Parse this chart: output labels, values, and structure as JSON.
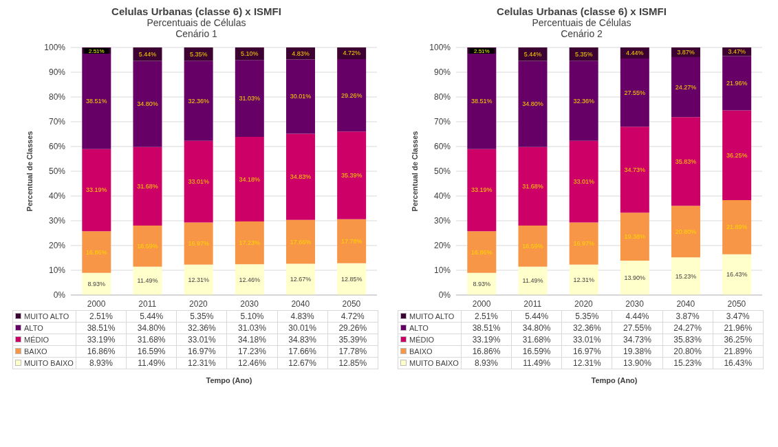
{
  "chart_data": [
    {
      "type": "bar",
      "title": "Celulas Urbanas (classe 6) x ISMFI",
      "subtitle": "Percentuais de Células\nCenário 1",
      "xlabel": "Tempo (Ano)",
      "ylabel": "Percentual de Classes",
      "categories": [
        "2000",
        "2011",
        "2020",
        "2030",
        "2040",
        "2050"
      ],
      "stacked": true,
      "grid": "y",
      "legend": "bottom",
      "ylim": [
        0,
        100
      ],
      "yticks": [
        {
          "value": 0,
          "label": "0%"
        },
        {
          "value": 10,
          "label": "10%"
        },
        {
          "value": 20,
          "label": "20%"
        },
        {
          "value": 30,
          "label": "30%"
        },
        {
          "value": 40,
          "label": "40%"
        },
        {
          "value": 50,
          "label": "50%"
        },
        {
          "value": 60,
          "label": "60%"
        },
        {
          "value": 70,
          "label": "70%"
        },
        {
          "value": 80,
          "label": "80%"
        },
        {
          "value": 90,
          "label": "90%"
        },
        {
          "value": 100,
          "label": "100%"
        }
      ],
      "series": [
        {
          "name": "MUITO BAIXO",
          "color": "#ffffcc",
          "values": [
            8.93,
            11.49,
            12.31,
            12.46,
            12.67,
            12.85
          ],
          "value_labels": [
            "8.93%",
            "11.49%",
            "12.31%",
            "12.46%",
            "12.67%",
            "12.85%"
          ]
        },
        {
          "name": "BAIXO",
          "color": "#f79646",
          "values": [
            16.86,
            16.59,
            16.97,
            17.23,
            17.66,
            17.78
          ],
          "value_labels": [
            "16.86%",
            "16.59%",
            "16.97%",
            "17.23%",
            "17.66%",
            "17.78%"
          ]
        },
        {
          "name": "MÉDIO",
          "color": "#cc0066",
          "values": [
            33.19,
            31.68,
            33.01,
            34.18,
            34.83,
            35.39
          ],
          "value_labels": [
            "33.19%",
            "31.68%",
            "33.01%",
            "34.18%",
            "34.83%",
            "35.39%"
          ]
        },
        {
          "name": "ALTO",
          "color": "#660066",
          "values": [
            38.51,
            34.8,
            32.36,
            31.03,
            30.01,
            29.26
          ],
          "value_labels": [
            "38.51%",
            "34.80%",
            "32.36%",
            "31.03%",
            "30.01%",
            "29.26%"
          ]
        },
        {
          "name": "MUITO ALTO",
          "color": "#3d0033",
          "values": [
            2.51,
            5.44,
            5.35,
            5.1,
            4.83,
            4.72
          ],
          "value_labels": [
            "2.51%",
            "5.44%",
            "5.35%",
            "5.10%",
            "4.83%",
            "4.72%"
          ]
        }
      ]
    },
    {
      "type": "bar",
      "title": "Celulas Urbanas (classe 6) x ISMFI",
      "subtitle": "Percentuais de Células\nCenário 2",
      "xlabel": "Tempo (Ano)",
      "ylabel": "Percentual de Classes",
      "categories": [
        "2000",
        "2011",
        "2020",
        "2030",
        "2040",
        "2050"
      ],
      "stacked": true,
      "grid": "y",
      "legend": "bottom",
      "ylim": [
        0,
        100
      ],
      "yticks": [
        {
          "value": 0,
          "label": "0%"
        },
        {
          "value": 10,
          "label": "10%"
        },
        {
          "value": 20,
          "label": "20%"
        },
        {
          "value": 30,
          "label": "30%"
        },
        {
          "value": 40,
          "label": "40%"
        },
        {
          "value": 50,
          "label": "50%"
        },
        {
          "value": 60,
          "label": "60%"
        },
        {
          "value": 70,
          "label": "70%"
        },
        {
          "value": 80,
          "label": "80%"
        },
        {
          "value": 90,
          "label": "90%"
        },
        {
          "value": 100,
          "label": "100%"
        }
      ],
      "series": [
        {
          "name": "MUITO BAIXO",
          "color": "#ffffcc",
          "values": [
            8.93,
            11.49,
            12.31,
            13.9,
            15.23,
            16.43
          ],
          "value_labels": [
            "8.93%",
            "11.49%",
            "12.31%",
            "13.90%",
            "15.23%",
            "16.43%"
          ]
        },
        {
          "name": "BAIXO",
          "color": "#f79646",
          "values": [
            16.86,
            16.59,
            16.97,
            19.38,
            20.8,
            21.89
          ],
          "value_labels": [
            "16.86%",
            "16.59%",
            "16.97%",
            "19.38%",
            "20.80%",
            "21.89%"
          ]
        },
        {
          "name": "MÉDIO",
          "color": "#cc0066",
          "values": [
            33.19,
            31.68,
            33.01,
            34.73,
            35.83,
            36.25
          ],
          "value_labels": [
            "33.19%",
            "31.68%",
            "33.01%",
            "34.73%",
            "35.83%",
            "36.25%"
          ]
        },
        {
          "name": "ALTO",
          "color": "#660066",
          "values": [
            38.51,
            34.8,
            32.36,
            27.55,
            24.27,
            21.96
          ],
          "value_labels": [
            "38.51%",
            "34.80%",
            "32.36%",
            "27.55%",
            "24.27%",
            "21.96%"
          ]
        },
        {
          "name": "MUITO ALTO",
          "color": "#3d0033",
          "values": [
            2.51,
            5.44,
            5.35,
            4.44,
            3.87,
            3.47
          ],
          "value_labels": [
            "2.51%",
            "5.44%",
            "5.35%",
            "4.44%",
            "3.87%",
            "3.47%"
          ]
        }
      ]
    }
  ]
}
